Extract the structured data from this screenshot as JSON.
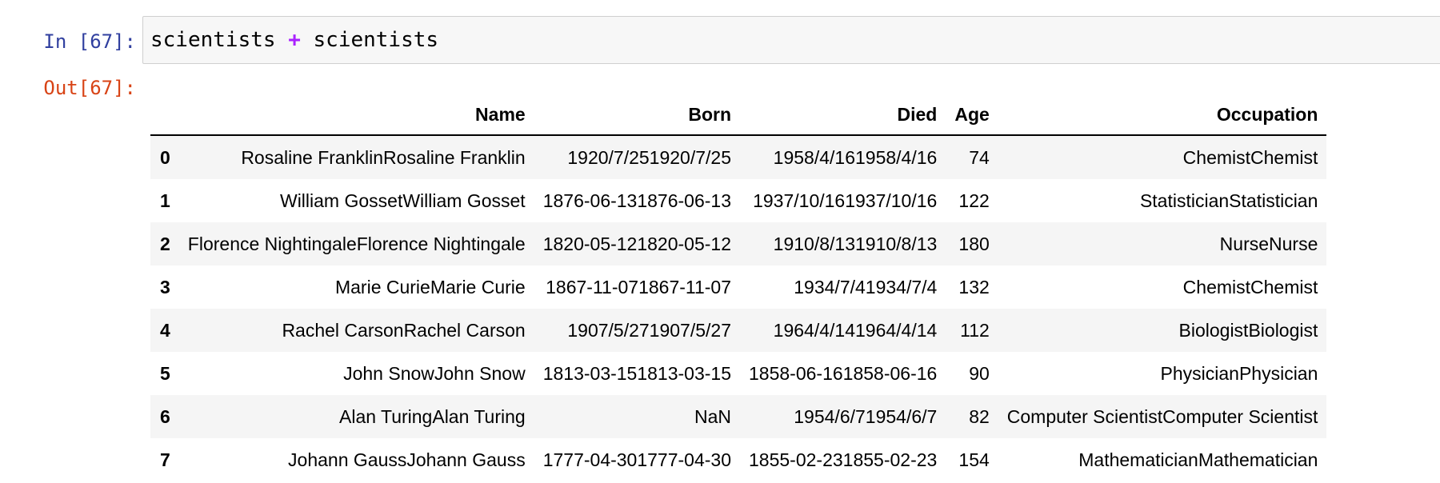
{
  "cell": {
    "in_prompt": "In [67]:",
    "out_prompt": "Out[67]:",
    "code_left": "scientists",
    "code_op": "+",
    "code_right": "scientists"
  },
  "table": {
    "columns": [
      "",
      "Name",
      "Born",
      "Died",
      "Age",
      "Occupation"
    ],
    "rows": [
      {
        "index": "0",
        "Name": "Rosaline FranklinRosaline Franklin",
        "Born": "1920/7/251920/7/25",
        "Died": "1958/4/161958/4/16",
        "Age": "74",
        "Occupation": "ChemistChemist"
      },
      {
        "index": "1",
        "Name": "William GossetWilliam Gosset",
        "Born": "1876-06-131876-06-13",
        "Died": "1937/10/161937/10/16",
        "Age": "122",
        "Occupation": "StatisticianStatistician"
      },
      {
        "index": "2",
        "Name": "Florence NightingaleFlorence Nightingale",
        "Born": "1820-05-121820-05-12",
        "Died": "1910/8/131910/8/13",
        "Age": "180",
        "Occupation": "NurseNurse"
      },
      {
        "index": "3",
        "Name": "Marie CurieMarie Curie",
        "Born": "1867-11-071867-11-07",
        "Died": "1934/7/41934/7/4",
        "Age": "132",
        "Occupation": "ChemistChemist"
      },
      {
        "index": "4",
        "Name": "Rachel CarsonRachel Carson",
        "Born": "1907/5/271907/5/27",
        "Died": "1964/4/141964/4/14",
        "Age": "112",
        "Occupation": "BiologistBiologist"
      },
      {
        "index": "5",
        "Name": "John SnowJohn Snow",
        "Born": "1813-03-151813-03-15",
        "Died": "1858-06-161858-06-16",
        "Age": "90",
        "Occupation": "PhysicianPhysician"
      },
      {
        "index": "6",
        "Name": "Alan TuringAlan Turing",
        "Born": "NaN",
        "Died": "1954/6/71954/6/7",
        "Age": "82",
        "Occupation": "Computer ScientistComputer Scientist"
      },
      {
        "index": "7",
        "Name": "Johann GaussJohann Gauss",
        "Born": "1777-04-301777-04-30",
        "Died": "1855-02-231855-02-23",
        "Age": "154",
        "Occupation": "MathematicianMathematician"
      }
    ]
  }
}
